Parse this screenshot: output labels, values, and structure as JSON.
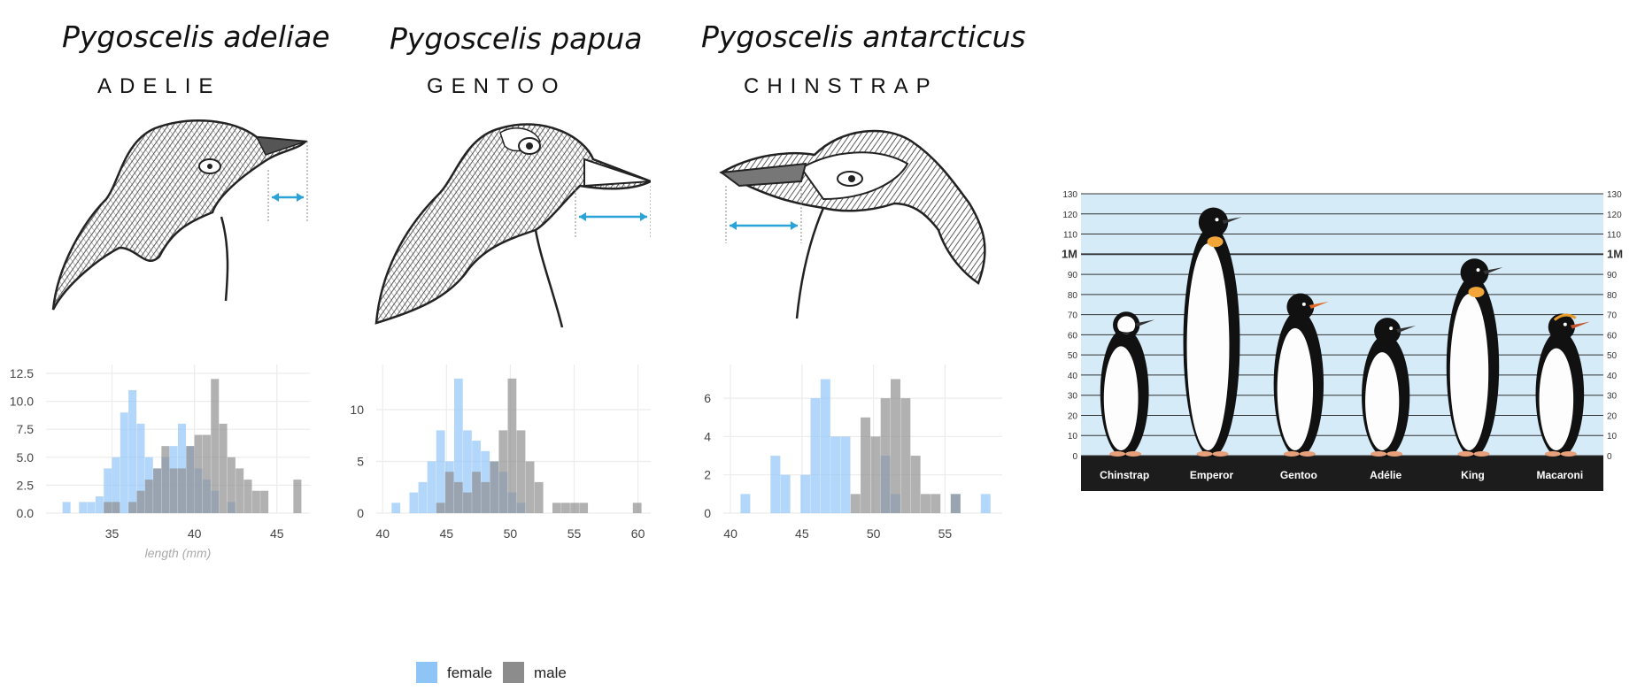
{
  "species": [
    {
      "scientific": "Pygoscelis adeliae",
      "common": "ADELIE"
    },
    {
      "scientific": "Pygoscelis papua",
      "common": "GENTOO"
    },
    {
      "scientific": "Pygoscelis antarcticus",
      "common": "CHINSTRAP"
    }
  ],
  "colors": {
    "female": "#8fc4f7",
    "male": "#8c8c8c",
    "measure_arrow": "#2aa3d8",
    "grid": "#ececec"
  },
  "legend": {
    "female": "female",
    "male": "male"
  },
  "chart_data": [
    {
      "type": "bar",
      "subtype": "histogram",
      "title": "",
      "xlabel": "length (mm)",
      "ylabel": "",
      "xlim": [
        31,
        47
      ],
      "ylim": [
        0,
        12.5
      ],
      "x_ticks": [
        35,
        40,
        45
      ],
      "y_ticks": [
        0,
        2.5,
        5,
        7.5,
        10,
        12.5
      ],
      "y_tick_labels": [
        "0.0",
        "2.5",
        "5.0",
        "7.5",
        "10.0",
        "12.5"
      ],
      "bin_width": 0.5,
      "series": [
        {
          "name": "female",
          "bins": [
            [
              32,
              1
            ],
            [
              33,
              1
            ],
            [
              33.5,
              1
            ],
            [
              34,
              1.5
            ],
            [
              34.5,
              4
            ],
            [
              35,
              5
            ],
            [
              35.5,
              9
            ],
            [
              36,
              11
            ],
            [
              36.5,
              8
            ],
            [
              37,
              5
            ],
            [
              37.5,
              4
            ],
            [
              38,
              5
            ],
            [
              38.5,
              6
            ],
            [
              39,
              8
            ],
            [
              39.5,
              6
            ],
            [
              40,
              4
            ],
            [
              40.5,
              3
            ],
            [
              41,
              2
            ],
            [
              42,
              1
            ]
          ]
        },
        {
          "name": "male",
          "bins": [
            [
              34.5,
              1
            ],
            [
              35,
              1
            ],
            [
              36,
              1
            ],
            [
              36.5,
              2
            ],
            [
              37,
              3
            ],
            [
              37.5,
              4
            ],
            [
              38,
              6
            ],
            [
              38.5,
              4
            ],
            [
              39,
              4
            ],
            [
              39.5,
              6
            ],
            [
              40,
              7
            ],
            [
              40.5,
              7
            ],
            [
              41,
              12
            ],
            [
              41.5,
              8
            ],
            [
              42,
              5
            ],
            [
              42.5,
              4
            ],
            [
              43,
              3
            ],
            [
              43.5,
              2
            ],
            [
              44,
              2
            ],
            [
              46,
              3
            ]
          ]
        }
      ]
    },
    {
      "type": "bar",
      "subtype": "histogram",
      "title": "",
      "xlabel": "",
      "ylabel": "",
      "xlim": [
        39.5,
        61
      ],
      "ylim": [
        0,
        13.5
      ],
      "x_ticks": [
        40,
        45,
        50,
        55,
        60
      ],
      "y_ticks": [
        0,
        5,
        10
      ],
      "bin_width": 0.7,
      "series": [
        {
          "name": "female",
          "bins": [
            [
              40.7,
              1
            ],
            [
              42.1,
              2
            ],
            [
              42.8,
              3
            ],
            [
              43.5,
              5
            ],
            [
              44.2,
              8
            ],
            [
              44.9,
              5
            ],
            [
              45.6,
              13
            ],
            [
              46.3,
              8
            ],
            [
              47,
              7
            ],
            [
              47.7,
              6
            ],
            [
              48.4,
              5
            ],
            [
              49.1,
              4
            ],
            [
              49.8,
              2
            ],
            [
              50.5,
              1
            ]
          ]
        },
        {
          "name": "male",
          "bins": [
            [
              44.2,
              1
            ],
            [
              44.9,
              4
            ],
            [
              45.6,
              3
            ],
            [
              46.3,
              2
            ],
            [
              47,
              4
            ],
            [
              47.7,
              3
            ],
            [
              48.4,
              5
            ],
            [
              49.1,
              8
            ],
            [
              49.8,
              13
            ],
            [
              50.5,
              8
            ],
            [
              51.2,
              5
            ],
            [
              51.9,
              3
            ],
            [
              53.3,
              1
            ],
            [
              54,
              1
            ],
            [
              54.7,
              1
            ],
            [
              55.4,
              1
            ],
            [
              59.6,
              1
            ]
          ]
        }
      ]
    },
    {
      "type": "bar",
      "subtype": "histogram",
      "title": "",
      "xlabel": "",
      "ylabel": "",
      "xlim": [
        39.5,
        59
      ],
      "ylim": [
        0,
        7.3
      ],
      "x_ticks": [
        40,
        45,
        50,
        55
      ],
      "y_ticks": [
        0,
        2,
        4,
        6
      ],
      "bin_width": 0.7,
      "series": [
        {
          "name": "female",
          "bins": [
            [
              40.7,
              1
            ],
            [
              42.8,
              3
            ],
            [
              43.5,
              2
            ],
            [
              44.9,
              2
            ],
            [
              45.6,
              6
            ],
            [
              46.3,
              7
            ],
            [
              47,
              4
            ],
            [
              47.7,
              4
            ],
            [
              50.5,
              3
            ],
            [
              51.2,
              1
            ],
            [
              55.4,
              1
            ],
            [
              57.5,
              1
            ]
          ]
        },
        {
          "name": "male",
          "bins": [
            [
              48.4,
              1
            ],
            [
              49.1,
              5
            ],
            [
              49.8,
              4
            ],
            [
              50.5,
              6
            ],
            [
              51.2,
              7
            ],
            [
              51.9,
              6
            ],
            [
              52.6,
              3
            ],
            [
              53.3,
              1
            ],
            [
              54,
              1
            ],
            [
              55.4,
              1
            ]
          ]
        }
      ]
    },
    {
      "type": "bar",
      "subtype": "height-comparison",
      "title": "",
      "ylim": [
        0,
        130
      ],
      "y_ticks": [
        0,
        10,
        20,
        30,
        40,
        50,
        60,
        70,
        80,
        90,
        110,
        120,
        130
      ],
      "y_marker": {
        "at": 100,
        "label": "1M"
      },
      "categories": [
        "Chinstrap",
        "Emperor",
        "Gentoo",
        "Adélie",
        "King",
        "Macaroni"
      ],
      "values": [
        71,
        122,
        80,
        68,
        97,
        70
      ]
    }
  ]
}
